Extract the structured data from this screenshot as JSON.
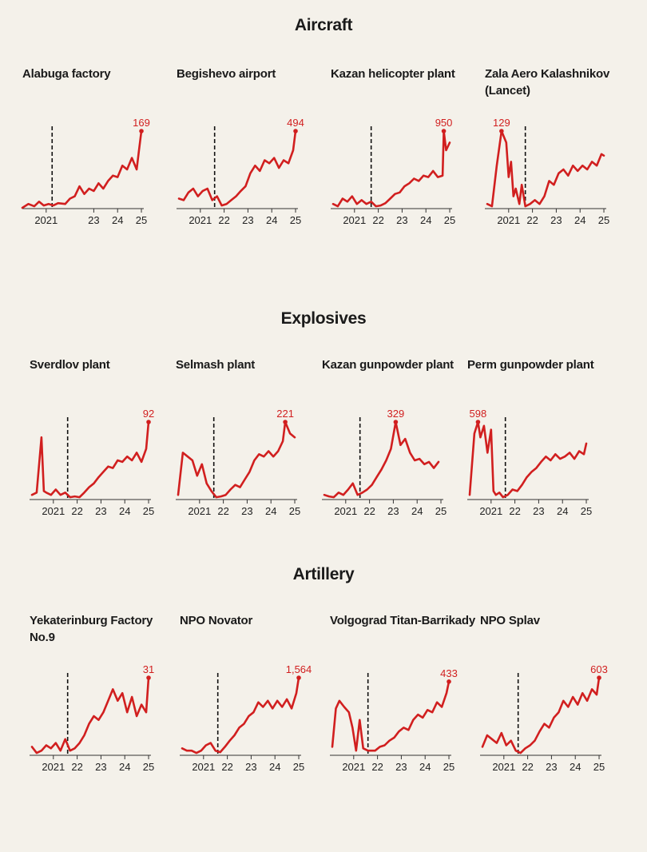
{
  "sections": [
    {
      "title": "Aircraft",
      "charts": [
        {
          "name": "Alabuga factory",
          "peak_label": "169",
          "tick_labels": [
            "2021",
            "23",
            "24",
            "25"
          ],
          "tick_x": [
            2021,
            2023,
            2024,
            2025
          ],
          "divider_x": 2021.25,
          "x": [
            2020,
            2020.25,
            2020.5,
            2020.7,
            2020.9,
            2021.1,
            2021.3,
            2021.5,
            2021.8,
            2022,
            2022.2,
            2022.4,
            2022.6,
            2022.8,
            2023,
            2023.2,
            2023.4,
            2023.6,
            2023.8,
            2024,
            2024.2,
            2024.4,
            2024.6,
            2024.8,
            2024.9,
            2025
          ],
          "y": [
            0,
            0.05,
            0.02,
            0.08,
            0.03,
            0.05,
            0.03,
            0.06,
            0.05,
            0.12,
            0.15,
            0.28,
            0.18,
            0.25,
            0.22,
            0.32,
            0.25,
            0.35,
            0.42,
            0.4,
            0.55,
            0.5,
            0.65,
            0.5,
            0.75,
            1.0
          ]
        },
        {
          "name": "Begishevo airport",
          "peak_label": "494",
          "tick_labels": [
            "2021",
            "22",
            "23",
            "24",
            "25"
          ],
          "tick_x": [
            2021,
            2022,
            2023,
            2024,
            2025
          ],
          "divider_x": 2021.6,
          "x": [
            2020.1,
            2020.3,
            2020.5,
            2020.7,
            2020.9,
            2021.1,
            2021.3,
            2021.5,
            2021.7,
            2021.9,
            2022.1,
            2022.3,
            2022.5,
            2022.7,
            2022.9,
            2023.1,
            2023.3,
            2023.5,
            2023.7,
            2023.9,
            2024.1,
            2024.3,
            2024.5,
            2024.7,
            2024.9,
            2025
          ],
          "y": [
            0.12,
            0.1,
            0.2,
            0.25,
            0.15,
            0.22,
            0.25,
            0.1,
            0.15,
            0.03,
            0.05,
            0.1,
            0.15,
            0.22,
            0.28,
            0.45,
            0.55,
            0.48,
            0.62,
            0.58,
            0.65,
            0.52,
            0.62,
            0.58,
            0.75,
            1.0
          ]
        },
        {
          "name": "Kazan helicopter plant",
          "peak_label": "950",
          "tick_labels": [
            "2021",
            "22",
            "23",
            "24",
            "25"
          ],
          "tick_x": [
            2021,
            2022,
            2023,
            2024,
            2025
          ],
          "divider_x": 2021.7,
          "x": [
            2020.1,
            2020.3,
            2020.5,
            2020.7,
            2020.9,
            2021.1,
            2021.3,
            2021.5,
            2021.7,
            2021.9,
            2022.1,
            2022.3,
            2022.5,
            2022.7,
            2022.9,
            2023.1,
            2023.3,
            2023.5,
            2023.7,
            2023.9,
            2024.1,
            2024.3,
            2024.5,
            2024.7,
            2024.75,
            2024.85,
            2025
          ],
          "y": [
            0.05,
            0.02,
            0.12,
            0.08,
            0.15,
            0.05,
            0.1,
            0.05,
            0.08,
            0.02,
            0.03,
            0.06,
            0.12,
            0.18,
            0.2,
            0.28,
            0.32,
            0.38,
            0.35,
            0.42,
            0.4,
            0.48,
            0.4,
            0.42,
            1.0,
            0.75,
            0.85
          ]
        },
        {
          "name": "Zala Aero Kalashnikov (Lancet)",
          "peak_label": "129",
          "tick_labels": [
            "2021",
            "22",
            "23",
            "24",
            "25"
          ],
          "tick_x": [
            2021,
            2022,
            2023,
            2024,
            2025
          ],
          "divider_x": 2021.7,
          "x": [
            2020.1,
            2020.3,
            2020.5,
            2020.7,
            2020.9,
            2021.0,
            2021.1,
            2021.2,
            2021.3,
            2021.45,
            2021.55,
            2021.7,
            2021.9,
            2022.1,
            2022.3,
            2022.5,
            2022.7,
            2022.9,
            2023.1,
            2023.3,
            2023.5,
            2023.7,
            2023.9,
            2024.1,
            2024.3,
            2024.5,
            2024.7,
            2024.9,
            2025
          ],
          "y": [
            0.05,
            0.02,
            0.55,
            1.0,
            0.85,
            0.4,
            0.6,
            0.15,
            0.25,
            0.05,
            0.3,
            0.02,
            0.05,
            0.1,
            0.05,
            0.15,
            0.35,
            0.3,
            0.45,
            0.5,
            0.42,
            0.55,
            0.48,
            0.55,
            0.5,
            0.6,
            0.55,
            0.7,
            0.68
          ]
        }
      ]
    },
    {
      "title": "Explosives",
      "charts": [
        {
          "name": "Sverdlov plant",
          "peak_label": "92",
          "tick_labels": [
            "2021",
            "22",
            "23",
            "24",
            "25"
          ],
          "tick_x": [
            2021,
            2022,
            2023,
            2024,
            2025
          ],
          "divider_x": 2021.6,
          "x": [
            2020.1,
            2020.3,
            2020.5,
            2020.6,
            2020.7,
            2020.9,
            2021.1,
            2021.3,
            2021.5,
            2021.7,
            2021.9,
            2022.1,
            2022.3,
            2022.5,
            2022.7,
            2022.9,
            2023.1,
            2023.3,
            2023.5,
            2023.7,
            2023.9,
            2024.1,
            2024.3,
            2024.5,
            2024.7,
            2024.9,
            2025
          ],
          "y": [
            0.05,
            0.08,
            0.8,
            0.1,
            0.08,
            0.05,
            0.12,
            0.05,
            0.08,
            0.02,
            0.03,
            0.02,
            0.08,
            0.15,
            0.2,
            0.28,
            0.35,
            0.42,
            0.4,
            0.5,
            0.48,
            0.55,
            0.5,
            0.6,
            0.48,
            0.65,
            1.0
          ]
        },
        {
          "name": "Selmash plant",
          "peak_label": "221",
          "tick_labels": [
            "2021",
            "22",
            "23",
            "24",
            "25"
          ],
          "tick_x": [
            2021,
            2022,
            2023,
            2024,
            2025
          ],
          "divider_x": 2021.6,
          "x": [
            2020.1,
            2020.3,
            2020.5,
            2020.7,
            2020.9,
            2021.1,
            2021.3,
            2021.5,
            2021.7,
            2021.9,
            2022.1,
            2022.3,
            2022.5,
            2022.7,
            2022.9,
            2023.1,
            2023.3,
            2023.5,
            2023.7,
            2023.9,
            2024.1,
            2024.3,
            2024.5,
            2024.6,
            2024.8,
            2025
          ],
          "y": [
            0.05,
            0.6,
            0.55,
            0.5,
            0.3,
            0.45,
            0.2,
            0.1,
            0.02,
            0.03,
            0.05,
            0.12,
            0.18,
            0.15,
            0.25,
            0.35,
            0.5,
            0.58,
            0.55,
            0.62,
            0.55,
            0.62,
            0.75,
            1.0,
            0.85,
            0.8
          ]
        },
        {
          "name": "Kazan gunpowder plant",
          "peak_label": "329",
          "tick_labels": [
            "2021",
            "22",
            "23",
            "24",
            "25"
          ],
          "tick_x": [
            2021,
            2022,
            2023,
            2024,
            2025
          ],
          "divider_x": 2021.6,
          "x": [
            2020.1,
            2020.3,
            2020.5,
            2020.7,
            2020.9,
            2021.1,
            2021.3,
            2021.5,
            2021.7,
            2021.9,
            2022.1,
            2022.3,
            2022.5,
            2022.7,
            2022.9,
            2023.1,
            2023.3,
            2023.5,
            2023.7,
            2023.9,
            2024.1,
            2024.3,
            2024.5,
            2024.7,
            2024.9
          ],
          "y": [
            0.05,
            0.03,
            0.02,
            0.08,
            0.05,
            0.12,
            0.2,
            0.05,
            0.08,
            0.12,
            0.18,
            0.28,
            0.38,
            0.5,
            0.65,
            1.0,
            0.7,
            0.78,
            0.6,
            0.5,
            0.52,
            0.45,
            0.48,
            0.4,
            0.48
          ]
        },
        {
          "name": "Perm gunpowder plant",
          "peak_label": "598",
          "tick_labels": [
            "2021",
            "22",
            "23",
            "24",
            "25"
          ],
          "tick_x": [
            2021,
            2022,
            2023,
            2024,
            2025
          ],
          "divider_x": 2021.6,
          "x": [
            2020.1,
            2020.3,
            2020.45,
            2020.55,
            2020.7,
            2020.85,
            2021.0,
            2021.1,
            2021.2,
            2021.35,
            2021.5,
            2021.7,
            2021.9,
            2022.1,
            2022.3,
            2022.5,
            2022.7,
            2022.9,
            2023.1,
            2023.3,
            2023.5,
            2023.7,
            2023.9,
            2024.1,
            2024.3,
            2024.5,
            2024.7,
            2024.9,
            2025
          ],
          "y": [
            0.05,
            0.85,
            1.0,
            0.8,
            0.95,
            0.6,
            0.9,
            0.1,
            0.05,
            0.08,
            0.02,
            0.05,
            0.12,
            0.1,
            0.18,
            0.28,
            0.35,
            0.4,
            0.48,
            0.55,
            0.5,
            0.58,
            0.52,
            0.55,
            0.6,
            0.52,
            0.62,
            0.58,
            0.72
          ]
        }
      ]
    },
    {
      "title": "Artillery",
      "charts": [
        {
          "name": "Yekaterinburg Factory No.9",
          "peak_label": "31",
          "tick_labels": [
            "2021",
            "22",
            "23",
            "24",
            "25"
          ],
          "tick_x": [
            2021,
            2022,
            2023,
            2024,
            2025
          ],
          "divider_x": 2021.6,
          "x": [
            2020.1,
            2020.3,
            2020.5,
            2020.7,
            2020.9,
            2021.1,
            2021.3,
            2021.5,
            2021.7,
            2021.9,
            2022.1,
            2022.3,
            2022.5,
            2022.7,
            2022.9,
            2023.1,
            2023.3,
            2023.5,
            2023.7,
            2023.9,
            2024.1,
            2024.3,
            2024.5,
            2024.7,
            2024.9,
            2025
          ],
          "y": [
            0.1,
            0.02,
            0.05,
            0.12,
            0.08,
            0.15,
            0.05,
            0.2,
            0.05,
            0.08,
            0.15,
            0.25,
            0.4,
            0.5,
            0.45,
            0.55,
            0.7,
            0.85,
            0.7,
            0.8,
            0.55,
            0.75,
            0.5,
            0.65,
            0.55,
            1.0
          ]
        },
        {
          "name": "NPO Novator",
          "peak_label": "1,564",
          "tick_labels": [
            "2021",
            "22",
            "23",
            "24",
            "25"
          ],
          "tick_x": [
            2021,
            2022,
            2023,
            2024,
            2025
          ],
          "divider_x": 2021.6,
          "x": [
            2020.1,
            2020.3,
            2020.5,
            2020.7,
            2020.9,
            2021.1,
            2021.3,
            2021.5,
            2021.7,
            2021.9,
            2022.1,
            2022.3,
            2022.5,
            2022.7,
            2022.9,
            2023.1,
            2023.3,
            2023.5,
            2023.7,
            2023.9,
            2024.1,
            2024.3,
            2024.5,
            2024.7,
            2024.9,
            2025
          ],
          "y": [
            0.08,
            0.05,
            0.05,
            0.02,
            0.05,
            0.12,
            0.15,
            0.05,
            0.03,
            0.1,
            0.18,
            0.25,
            0.35,
            0.4,
            0.5,
            0.55,
            0.68,
            0.62,
            0.7,
            0.6,
            0.7,
            0.62,
            0.72,
            0.6,
            0.8,
            1.0
          ]
        },
        {
          "name": "Volgograd Titan-Barrikady",
          "peak_label": "433",
          "tick_labels": [
            "2021",
            "22",
            "23",
            "24",
            "25"
          ],
          "tick_x": [
            2021,
            2022,
            2023,
            2024,
            2025
          ],
          "divider_x": 2021.6,
          "x": [
            2020.1,
            2020.25,
            2020.4,
            2020.6,
            2020.8,
            2020.95,
            2021.1,
            2021.25,
            2021.4,
            2021.6,
            2021.9,
            2022.1,
            2022.3,
            2022.5,
            2022.7,
            2022.9,
            2023.1,
            2023.3,
            2023.5,
            2023.7,
            2023.9,
            2024.1,
            2024.3,
            2024.5,
            2024.7,
            2024.9,
            2025
          ],
          "y": [
            0.1,
            0.6,
            0.7,
            0.62,
            0.55,
            0.35,
            0.05,
            0.45,
            0.08,
            0.05,
            0.05,
            0.1,
            0.12,
            0.18,
            0.22,
            0.3,
            0.35,
            0.32,
            0.45,
            0.52,
            0.48,
            0.58,
            0.55,
            0.68,
            0.62,
            0.8,
            0.95
          ]
        },
        {
          "name": "NPO Splav",
          "peak_label": "603",
          "tick_labels": [
            "2021",
            "22",
            "23",
            "24",
            "25"
          ],
          "tick_x": [
            2021,
            2022,
            2023,
            2024,
            2025
          ],
          "divider_x": 2021.6,
          "x": [
            2020.1,
            2020.3,
            2020.5,
            2020.7,
            2020.9,
            2021.1,
            2021.3,
            2021.5,
            2021.7,
            2021.9,
            2022.1,
            2022.3,
            2022.5,
            2022.7,
            2022.9,
            2023.1,
            2023.3,
            2023.5,
            2023.7,
            2023.9,
            2024.1,
            2024.3,
            2024.5,
            2024.7,
            2024.9,
            2025
          ],
          "y": [
            0.1,
            0.25,
            0.2,
            0.15,
            0.28,
            0.12,
            0.18,
            0.05,
            0.02,
            0.08,
            0.12,
            0.18,
            0.3,
            0.4,
            0.35,
            0.48,
            0.55,
            0.7,
            0.62,
            0.75,
            0.65,
            0.8,
            0.7,
            0.85,
            0.78,
            1.0
          ]
        }
      ]
    }
  ],
  "chart_data": {
    "type": "line",
    "xlim": [
      2020,
      2025.1
    ],
    "ylim": [
      0,
      1
    ],
    "grid": false,
    "line_color": "#d11f1f",
    "text_color": "#1a1a1a",
    "background": "#f4f1ea"
  }
}
